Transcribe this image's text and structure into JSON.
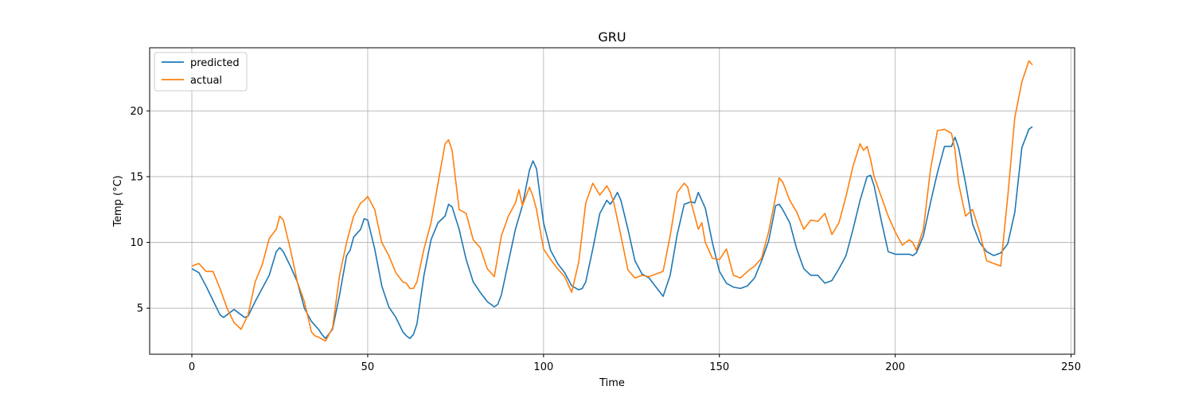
{
  "chart_data": {
    "type": "line",
    "title": "GRU",
    "xlabel": "Time",
    "ylabel": "Temp (°C)",
    "xlim": [
      -12,
      251
    ],
    "ylim": [
      1.5,
      24.8
    ],
    "xticks": [
      0,
      50,
      100,
      150,
      200,
      250
    ],
    "yticks": [
      5,
      10,
      15,
      20
    ],
    "grid": true,
    "legend_position": "upper-left",
    "series": [
      {
        "name": "predicted",
        "color": "#1f77b4",
        "x": [
          0,
          2,
          4,
          6,
          8,
          9,
          10,
          12,
          14,
          15,
          16,
          18,
          20,
          22,
          24,
          25,
          26,
          28,
          30,
          32,
          34,
          36,
          37,
          38,
          40,
          42,
          44,
          45,
          46,
          48,
          49,
          50,
          52,
          54,
          56,
          58,
          60,
          61,
          62,
          63,
          64,
          66,
          68,
          70,
          72,
          73,
          74,
          76,
          78,
          80,
          82,
          84,
          86,
          87,
          88,
          90,
          92,
          94,
          96,
          97,
          98,
          100,
          102,
          104,
          106,
          108,
          110,
          111,
          112,
          114,
          116,
          118,
          119,
          120,
          121,
          122,
          124,
          126,
          128,
          130,
          132,
          134,
          136,
          138,
          140,
          142,
          143,
          144,
          146,
          148,
          150,
          152,
          154,
          156,
          158,
          160,
          162,
          164,
          166,
          167,
          168,
          170,
          172,
          174,
          176,
          178,
          180,
          182,
          184,
          186,
          188,
          190,
          192,
          193,
          194,
          196,
          198,
          200,
          202,
          204,
          205,
          206,
          208,
          210,
          212,
          214,
          216,
          217,
          218,
          220,
          222,
          224,
          226,
          228,
          230,
          232,
          234,
          236,
          238,
          239
        ],
        "values": [
          8.0,
          7.7,
          6.7,
          5.6,
          4.5,
          4.3,
          4.5,
          4.9,
          4.5,
          4.3,
          4.4,
          5.5,
          6.5,
          7.5,
          9.3,
          9.6,
          9.3,
          8.2,
          7.0,
          5.0,
          4.0,
          3.4,
          3.0,
          2.7,
          3.4,
          6.0,
          9.0,
          9.4,
          10.4,
          11.0,
          11.8,
          11.7,
          9.5,
          6.7,
          5.1,
          4.3,
          3.2,
          2.9,
          2.7,
          3.0,
          3.8,
          7.5,
          10.2,
          11.5,
          12.0,
          12.9,
          12.7,
          11.0,
          8.7,
          7.0,
          6.2,
          5.5,
          5.1,
          5.3,
          6.0,
          8.5,
          11.0,
          12.8,
          15.5,
          16.2,
          15.6,
          11.5,
          9.4,
          8.4,
          7.7,
          6.7,
          6.4,
          6.5,
          7.0,
          9.5,
          12.2,
          13.2,
          12.9,
          13.3,
          13.8,
          13.2,
          11.0,
          8.6,
          7.6,
          7.3,
          6.6,
          5.9,
          7.5,
          10.6,
          12.9,
          13.1,
          13.0,
          13.8,
          12.6,
          10.0,
          7.8,
          6.9,
          6.6,
          6.5,
          6.7,
          7.3,
          8.6,
          10.1,
          12.8,
          12.9,
          12.5,
          11.5,
          9.5,
          8.0,
          7.5,
          7.5,
          6.9,
          7.1,
          8.0,
          9.0,
          11.0,
          13.2,
          15.0,
          15.1,
          14.3,
          11.7,
          9.3,
          9.1,
          9.1,
          9.1,
          9.0,
          9.2,
          10.5,
          13.0,
          15.3,
          17.3,
          17.3,
          18.0,
          17.2,
          14.5,
          11.4,
          10.0,
          9.3,
          9.0,
          9.2,
          9.9,
          12.3,
          17.2,
          18.6,
          18.8
        ]
      },
      {
        "name": "actual",
        "color": "#ff7f0e",
        "x": [
          0,
          2,
          4,
          6,
          8,
          10,
          12,
          14,
          16,
          18,
          20,
          22,
          24,
          25,
          26,
          28,
          30,
          32,
          34,
          35,
          36,
          38,
          40,
          42,
          44,
          46,
          48,
          49,
          50,
          52,
          54,
          56,
          58,
          60,
          61,
          62,
          63,
          64,
          66,
          68,
          70,
          72,
          73,
          74,
          76,
          78,
          80,
          82,
          84,
          86,
          88,
          90,
          92,
          93,
          94,
          96,
          97,
          98,
          100,
          102,
          104,
          106,
          108,
          110,
          112,
          114,
          116,
          118,
          119,
          120,
          122,
          124,
          126,
          128,
          130,
          132,
          134,
          136,
          138,
          140,
          141,
          142,
          143,
          144,
          145,
          146,
          148,
          150,
          152,
          154,
          156,
          158,
          160,
          162,
          164,
          166,
          167,
          168,
          170,
          172,
          174,
          176,
          178,
          180,
          182,
          184,
          186,
          188,
          190,
          191,
          192,
          193,
          194,
          196,
          198,
          200,
          202,
          204,
          205,
          206,
          208,
          210,
          212,
          214,
          216,
          217,
          218,
          220,
          222,
          224,
          226,
          228,
          230,
          232,
          234,
          236,
          238,
          239
        ],
        "values": [
          8.2,
          8.4,
          7.8,
          7.8,
          6.5,
          5.0,
          3.9,
          3.4,
          4.5,
          7.0,
          8.3,
          10.3,
          11.0,
          12.0,
          11.7,
          9.5,
          7.0,
          5.5,
          3.2,
          2.9,
          2.8,
          2.5,
          3.5,
          7.5,
          10.0,
          12.0,
          13.0,
          13.2,
          13.5,
          12.5,
          10.0,
          9.0,
          7.7,
          7.0,
          6.9,
          6.5,
          6.5,
          7.0,
          9.5,
          11.5,
          14.5,
          17.5,
          17.8,
          17.0,
          12.5,
          12.2,
          10.2,
          9.6,
          8.0,
          7.4,
          10.5,
          12.0,
          13.0,
          14.0,
          12.8,
          14.2,
          13.5,
          12.5,
          9.5,
          8.7,
          8.0,
          7.4,
          6.2,
          8.5,
          13.0,
          14.5,
          13.6,
          14.3,
          13.8,
          13.0,
          10.5,
          7.9,
          7.3,
          7.5,
          7.4,
          7.6,
          7.8,
          10.5,
          13.8,
          14.5,
          14.2,
          13.0,
          12.0,
          11.0,
          11.5,
          10.0,
          8.8,
          8.7,
          9.5,
          7.5,
          7.3,
          7.8,
          8.2,
          8.8,
          10.8,
          13.5,
          14.9,
          14.6,
          13.2,
          12.3,
          11.0,
          11.7,
          11.6,
          12.2,
          10.6,
          11.5,
          13.5,
          15.8,
          17.5,
          17.0,
          17.3,
          16.3,
          15.0,
          13.5,
          12.0,
          10.8,
          9.8,
          10.2,
          10.0,
          9.4,
          11.0,
          15.5,
          18.5,
          18.6,
          18.3,
          17.0,
          14.5,
          12.0,
          12.5,
          10.8,
          8.6,
          8.4,
          8.2,
          13.5,
          19.5,
          22.2,
          23.8,
          23.5
        ]
      }
    ]
  }
}
